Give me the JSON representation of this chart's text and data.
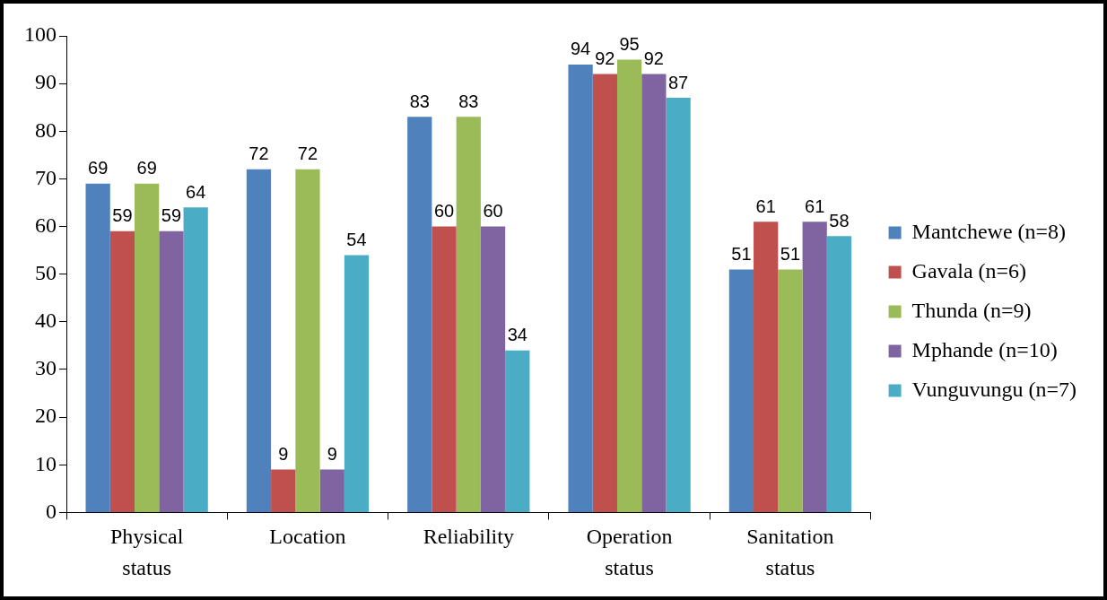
{
  "chart_data": {
    "type": "bar",
    "categories": [
      "Physical status",
      "Location",
      "Reliability",
      "Operation status",
      "Sanitation status"
    ],
    "series": [
      {
        "name": "Mantchewe (n=8)",
        "color": "#4f81bd",
        "values": [
          69,
          72,
          83,
          94,
          51
        ]
      },
      {
        "name": "Gavala (n=6)",
        "color": "#c0504d",
        "values": [
          59,
          9,
          60,
          92,
          61
        ]
      },
      {
        "name": "Thunda (n=9)",
        "color": "#9bbb59",
        "values": [
          69,
          72,
          83,
          95,
          51
        ]
      },
      {
        "name": "Mphande (n=10)",
        "color": "#8064a2",
        "values": [
          59,
          9,
          60,
          92,
          61
        ]
      },
      {
        "name": "Vunguvungu (n=7)",
        "color": "#4bacc6",
        "values": [
          64,
          54,
          34,
          87,
          58
        ]
      }
    ],
    "ylim": [
      0,
      100
    ],
    "yticks": [
      0,
      10,
      20,
      30,
      40,
      50,
      60,
      70,
      80,
      90,
      100
    ],
    "grid": false,
    "legend": "right",
    "data_labels": true
  }
}
